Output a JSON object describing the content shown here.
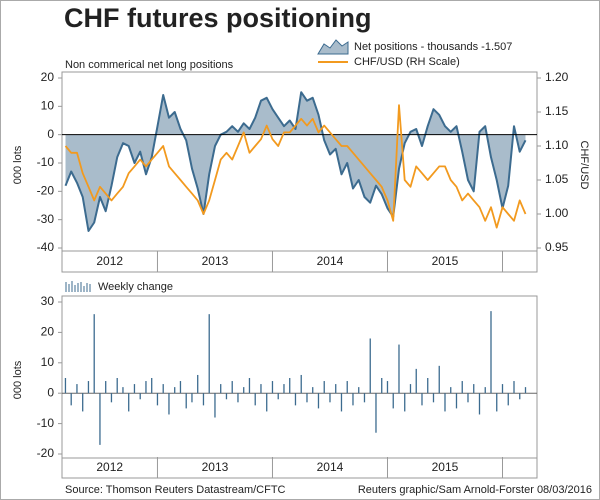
{
  "title": "CHF futures positioning",
  "source": "Source: Thomson Reuters Datastream/CFTC",
  "credit": "Reuters graphic/Sam Arnold-Forster 08/03/2016",
  "chart_data": [
    {
      "type": "area",
      "subtitle": "Non commerical net long positions",
      "ylabel": "000 lots",
      "y2label": "CHF/USD",
      "x": [
        2012.2,
        2012.25,
        2012.3,
        2012.35,
        2012.4,
        2012.45,
        2012.5,
        2012.55,
        2012.6,
        2012.65,
        2012.7,
        2012.75,
        2012.8,
        2012.85,
        2012.9,
        2012.95,
        2013,
        2013.05,
        2013.1,
        2013.15,
        2013.2,
        2013.25,
        2013.3,
        2013.35,
        2013.4,
        2013.45,
        2013.5,
        2013.55,
        2013.6,
        2013.65,
        2013.7,
        2013.75,
        2013.8,
        2013.85,
        2013.9,
        2013.95,
        2014,
        2014.05,
        2014.1,
        2014.15,
        2014.2,
        2014.25,
        2014.3,
        2014.35,
        2014.4,
        2014.45,
        2014.5,
        2014.55,
        2014.6,
        2014.65,
        2014.7,
        2014.75,
        2014.8,
        2014.85,
        2014.9,
        2014.95,
        2015,
        2015.05,
        2015.1,
        2015.15,
        2015.2,
        2015.25,
        2015.3,
        2015.35,
        2015.4,
        2015.45,
        2015.5,
        2015.55,
        2015.6,
        2015.65,
        2015.7,
        2015.75,
        2015.8,
        2015.85,
        2015.9,
        2015.95,
        2016,
        2016.05,
        2016.1,
        2016.15,
        2016.2
      ],
      "series": [
        {
          "name": "Net positions - thousands -1.507",
          "color": "#3c6b8f",
          "fill": "#a9bccb",
          "values": [
            -18,
            -13,
            -17,
            -22,
            -34,
            -31,
            -22,
            -27,
            -18,
            -8,
            -3,
            -4,
            -10,
            -6,
            -14,
            -8,
            3,
            14,
            6,
            8,
            2,
            -2,
            -12,
            -19,
            -28,
            -14,
            -4,
            0,
            1,
            3,
            1,
            4,
            2,
            6,
            12,
            13,
            9,
            6,
            3,
            5,
            2,
            15,
            12,
            13,
            7,
            -2,
            -7,
            -5,
            -14,
            -10,
            -19,
            -16,
            -22,
            -24,
            -18,
            -21,
            -26,
            -29,
            -12,
            -3,
            1,
            2,
            -4,
            3,
            9,
            7,
            3,
            1,
            3,
            -6,
            -16,
            -20,
            1,
            3,
            -8,
            -16,
            -26,
            -18,
            3,
            -6,
            -2
          ]
        },
        {
          "name": "CHF/USD (RH Scale)",
          "color": "#f29a1f",
          "axis": "y2",
          "values": [
            1.1,
            1.09,
            1.09,
            1.06,
            1.04,
            1.02,
            1.04,
            1.03,
            1.02,
            1.03,
            1.04,
            1.06,
            1.07,
            1.08,
            1.07,
            1.08,
            1.09,
            1.1,
            1.07,
            1.06,
            1.05,
            1.04,
            1.03,
            1.02,
            1,
            1.02,
            1.05,
            1.08,
            1.09,
            1.08,
            1.1,
            1.12,
            1.09,
            1.1,
            1.11,
            1.13,
            1.11,
            1.1,
            1.12,
            1.12,
            1.13,
            1.14,
            1.13,
            1.14,
            1.12,
            1.13,
            1.12,
            1.11,
            1.1,
            1.1,
            1.09,
            1.08,
            1.07,
            1.06,
            1.05,
            1.04,
            1.02,
            0.99,
            1.16,
            1.05,
            1.04,
            1.07,
            1.06,
            1.05,
            1.06,
            1.07,
            1.07,
            1.05,
            1.04,
            1.02,
            1.03,
            1.02,
            1.01,
            0.99,
            1.01,
            0.98,
            1.01,
            1,
            0.99,
            1.02,
            1
          ]
        }
      ],
      "xlim": [
        2012.17,
        2016.3
      ],
      "xticks": [
        2012,
        2013,
        2014,
        2015,
        2016
      ],
      "ylim": [
        -40,
        20
      ],
      "yticks": [
        20,
        10,
        0,
        -10,
        -20,
        -30,
        -40
      ],
      "y2lim": [
        0.95,
        1.2
      ],
      "y2ticks": [
        {
          "value": 1.2,
          "label": "1.20"
        },
        1.15,
        {
          "value": 1.1,
          "label": "1.10"
        },
        1.05,
        {
          "value": 1,
          "label": "1.00"
        },
        0.95
      ]
    },
    {
      "type": "bar",
      "ylabel": "000 lots",
      "x": [
        2012.2,
        2012.25,
        2012.3,
        2012.35,
        2012.4,
        2012.45,
        2012.5,
        2012.55,
        2012.6,
        2012.65,
        2012.7,
        2012.75,
        2012.8,
        2012.85,
        2012.9,
        2012.95,
        2013,
        2013.05,
        2013.1,
        2013.15,
        2013.2,
        2013.25,
        2013.3,
        2013.35,
        2013.4,
        2013.45,
        2013.5,
        2013.55,
        2013.6,
        2013.65,
        2013.7,
        2013.75,
        2013.8,
        2013.85,
        2013.9,
        2013.95,
        2014,
        2014.05,
        2014.1,
        2014.15,
        2014.2,
        2014.25,
        2014.3,
        2014.35,
        2014.4,
        2014.45,
        2014.5,
        2014.55,
        2014.6,
        2014.65,
        2014.7,
        2014.75,
        2014.8,
        2014.85,
        2014.9,
        2014.95,
        2015,
        2015.05,
        2015.1,
        2015.15,
        2015.2,
        2015.25,
        2015.3,
        2015.35,
        2015.4,
        2015.45,
        2015.5,
        2015.55,
        2015.6,
        2015.65,
        2015.7,
        2015.75,
        2015.8,
        2015.85,
        2015.9,
        2015.95,
        2016,
        2016.05,
        2016.1,
        2016.15,
        2016.2
      ],
      "series": [
        {
          "name": "Weekly change",
          "color": "#3c6b8f",
          "values": [
            5,
            -4,
            3,
            -6,
            4,
            26,
            -17,
            4,
            -3,
            5,
            2,
            -6,
            3,
            -2,
            4,
            5,
            -4,
            3,
            -7,
            2,
            4,
            -5,
            -3,
            6,
            -4,
            26,
            -8,
            3,
            -2,
            4,
            -3,
            2,
            5,
            -4,
            3,
            -6,
            4,
            -2,
            3,
            5,
            -4,
            6,
            -3,
            2,
            -5,
            4,
            -3,
            3,
            -6,
            4,
            -4,
            2,
            -3,
            18,
            -13,
            5,
            4,
            -5,
            16,
            -6,
            3,
            8,
            -4,
            5,
            -3,
            9,
            -6,
            2,
            -5,
            4,
            -3,
            3,
            -7,
            2,
            27,
            -6,
            3,
            -4,
            4,
            -2,
            2
          ]
        }
      ],
      "xlim": [
        2012.17,
        2016.3
      ],
      "xticks": [
        2012,
        2013,
        2014,
        2015,
        2016
      ],
      "ylim": [
        -20,
        30
      ],
      "yticks": [
        30,
        20,
        10,
        0,
        -10,
        -20
      ]
    }
  ]
}
